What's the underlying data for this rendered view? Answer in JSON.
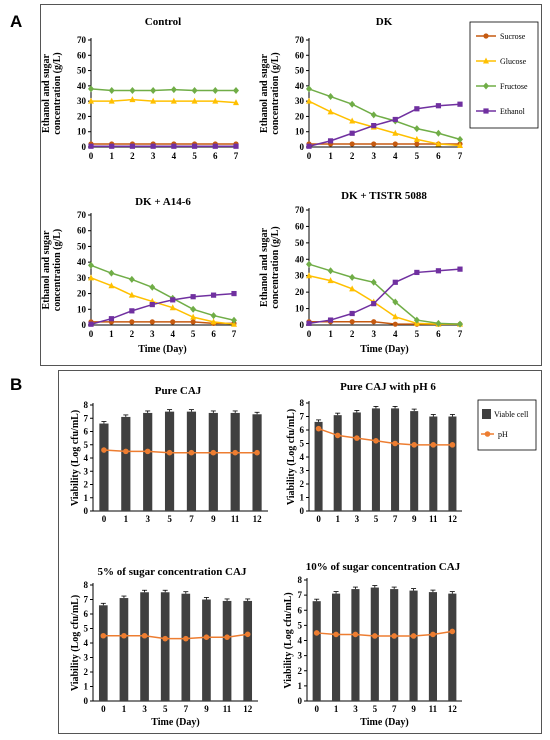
{
  "panels": {
    "a": "A",
    "b": "B"
  },
  "chart_data": [
    {
      "id": "control",
      "type": "line",
      "title": "Control",
      "ylabel": "Ethanol and sugar concentration (g/L)",
      "xlabel": "",
      "x": [
        0,
        1,
        2,
        3,
        4,
        5,
        6,
        7
      ],
      "ylim": [
        0,
        70
      ],
      "yticks": [
        0,
        10,
        20,
        30,
        40,
        50,
        60,
        70
      ],
      "series": [
        {
          "name": "Sucrose",
          "values": [
            2,
            2,
            2,
            2,
            2,
            2,
            2,
            2
          ]
        },
        {
          "name": "Glucose",
          "values": [
            30,
            30,
            31,
            30,
            30,
            30,
            30,
            29
          ]
        },
        {
          "name": "Fructose",
          "values": [
            38,
            37,
            37,
            37,
            37.5,
            37,
            37,
            37
          ]
        },
        {
          "name": "Ethanol",
          "values": [
            0.5,
            0.5,
            0.5,
            0.5,
            0.5,
            0.5,
            0.5,
            0.5
          ]
        }
      ]
    },
    {
      "id": "dk",
      "type": "line",
      "title": "DK",
      "ylabel": "Ethanol and sugar concentration (g/L)",
      "xlabel": "",
      "x": [
        0,
        1,
        2,
        3,
        4,
        5,
        6,
        7
      ],
      "ylim": [
        0,
        70
      ],
      "yticks": [
        0,
        10,
        20,
        30,
        40,
        50,
        60,
        70
      ],
      "series": [
        {
          "name": "Sucrose",
          "values": [
            2,
            2,
            2,
            2,
            2,
            2,
            2,
            2
          ]
        },
        {
          "name": "Glucose",
          "values": [
            30,
            23,
            17,
            13,
            9,
            5,
            2,
            1
          ]
        },
        {
          "name": "Fructose",
          "values": [
            38,
            33,
            28,
            21,
            17,
            12,
            9,
            5
          ]
        },
        {
          "name": "Ethanol",
          "values": [
            0.5,
            4,
            9,
            14,
            18,
            25,
            27,
            28
          ]
        }
      ]
    },
    {
      "id": "dka14",
      "type": "line",
      "title": "DK + A14-6",
      "ylabel": "Ethanol and sugar concentration (g/L)",
      "xlabel": "Time (Day)",
      "x": [
        0,
        1,
        2,
        3,
        4,
        5,
        6,
        7
      ],
      "ylim": [
        0,
        70
      ],
      "yticks": [
        0,
        10,
        20,
        30,
        40,
        50,
        60,
        70
      ],
      "series": [
        {
          "name": "Sucrose",
          "values": [
            2,
            2,
            2,
            2,
            2,
            2,
            1,
            1
          ]
        },
        {
          "name": "Glucose",
          "values": [
            30,
            25,
            19,
            15,
            11,
            5,
            2,
            0.5
          ]
        },
        {
          "name": "Fructose",
          "values": [
            38,
            33,
            29,
            24,
            17,
            10,
            6,
            3
          ]
        },
        {
          "name": "Ethanol",
          "values": [
            0.5,
            4,
            9,
            13,
            16,
            18,
            19,
            20
          ]
        }
      ]
    },
    {
      "id": "dktistr",
      "type": "line",
      "title": "DK + TISTR 5088",
      "ylabel": "Ethanol and sugar concentration (g/L)",
      "xlabel": "Time (Day)",
      "x": [
        0,
        1,
        2,
        3,
        4,
        5,
        6,
        7
      ],
      "ylim": [
        0,
        70
      ],
      "yticks": [
        0,
        10,
        20,
        30,
        40,
        50,
        60,
        70
      ],
      "series": [
        {
          "name": "Sucrose",
          "values": [
            2,
            2,
            2,
            2,
            0.5,
            0.5,
            0.5,
            0.5
          ]
        },
        {
          "name": "Glucose",
          "values": [
            30,
            27,
            22,
            14,
            5,
            1,
            0.5,
            0.5
          ]
        },
        {
          "name": "Fructose",
          "values": [
            37,
            33,
            29,
            26,
            14,
            3,
            1,
            0.5
          ]
        },
        {
          "name": "Ethanol",
          "values": [
            1,
            3,
            7,
            13,
            26,
            32,
            33,
            34
          ]
        }
      ]
    },
    {
      "id": "pure",
      "type": "bar",
      "title": "Pure CAJ",
      "ylabel": "Viability (Log cfu/mL)",
      "xlabel": "",
      "categories": [
        "0",
        "1",
        "3",
        "5",
        "7",
        "9",
        "11",
        "12"
      ],
      "ylim": [
        0,
        8
      ],
      "yticks": [
        0,
        1,
        2,
        3,
        4,
        5,
        6,
        7,
        8
      ],
      "series": [
        {
          "name": "Viable cell",
          "values": [
            6.6,
            7.1,
            7.4,
            7.5,
            7.5,
            7.4,
            7.4,
            7.3
          ]
        },
        {
          "name": "pH",
          "values": [
            4.6,
            4.5,
            4.5,
            4.4,
            4.4,
            4.4,
            4.4,
            4.4
          ]
        }
      ]
    },
    {
      "id": "ph6",
      "type": "bar",
      "title": "Pure CAJ with pH 6",
      "ylabel": "Viability (Log cfu/mL)",
      "xlabel": "",
      "categories": [
        "0",
        "1",
        "3",
        "5",
        "7",
        "9",
        "11",
        "12"
      ],
      "ylim": [
        0,
        8
      ],
      "yticks": [
        0,
        1,
        2,
        3,
        4,
        5,
        6,
        7,
        8
      ],
      "series": [
        {
          "name": "Viable cell",
          "values": [
            6.6,
            7.1,
            7.3,
            7.6,
            7.6,
            7.4,
            7.0,
            7.0
          ]
        },
        {
          "name": "pH",
          "values": [
            6.1,
            5.6,
            5.4,
            5.2,
            5.0,
            4.9,
            4.9,
            4.9
          ]
        }
      ]
    },
    {
      "id": "s5",
      "type": "bar",
      "title": "5% of sugar concentration CAJ",
      "ylabel": "Viability (Log cfu/mL)",
      "xlabel": "Time (Day)",
      "categories": [
        "0",
        "1",
        "3",
        "5",
        "7",
        "9",
        "11",
        "12"
      ],
      "ylim": [
        0,
        8
      ],
      "yticks": [
        0,
        1,
        2,
        3,
        4,
        5,
        6,
        7,
        8
      ],
      "series": [
        {
          "name": "Viable cell",
          "values": [
            6.6,
            7.1,
            7.5,
            7.5,
            7.4,
            7.0,
            6.9,
            6.9
          ]
        },
        {
          "name": "pH",
          "values": [
            4.5,
            4.5,
            4.5,
            4.3,
            4.3,
            4.4,
            4.4,
            4.6
          ]
        }
      ]
    },
    {
      "id": "s10",
      "type": "bar",
      "title": "10% of sugar concentration CAJ",
      "ylabel": "Viability (Log cfu/mL)",
      "xlabel": "Time (Day)",
      "categories": [
        "0",
        "1",
        "3",
        "5",
        "7",
        "9",
        "11",
        "12"
      ],
      "ylim": [
        0,
        8
      ],
      "yticks": [
        0,
        1,
        2,
        3,
        4,
        5,
        6,
        7,
        8
      ],
      "series": [
        {
          "name": "Viable cell",
          "values": [
            6.6,
            7.1,
            7.4,
            7.5,
            7.4,
            7.3,
            7.2,
            7.1
          ]
        },
        {
          "name": "pH",
          "values": [
            4.5,
            4.4,
            4.4,
            4.3,
            4.3,
            4.3,
            4.4,
            4.6
          ]
        }
      ]
    }
  ],
  "legend_a": [
    {
      "name": "Sucrose",
      "color": "#c55a11",
      "marker": "circle"
    },
    {
      "name": "Glucose",
      "color": "#ffc000",
      "marker": "triangle"
    },
    {
      "name": "Fructose",
      "color": "#70ad47",
      "marker": "diamond"
    },
    {
      "name": "Ethanol",
      "color": "#7030a0",
      "marker": "square"
    }
  ],
  "legend_b": [
    {
      "name": "Viable cell",
      "color": "#404040",
      "marker": "bar"
    },
    {
      "name": "pH",
      "color": "#ed7d31",
      "marker": "circle"
    }
  ],
  "colors": {
    "Sucrose": "#c55a11",
    "Glucose": "#ffc000",
    "Fructose": "#70ad47",
    "Ethanol": "#7030a0",
    "Viable cell": "#404040",
    "pH": "#ed7d31"
  }
}
